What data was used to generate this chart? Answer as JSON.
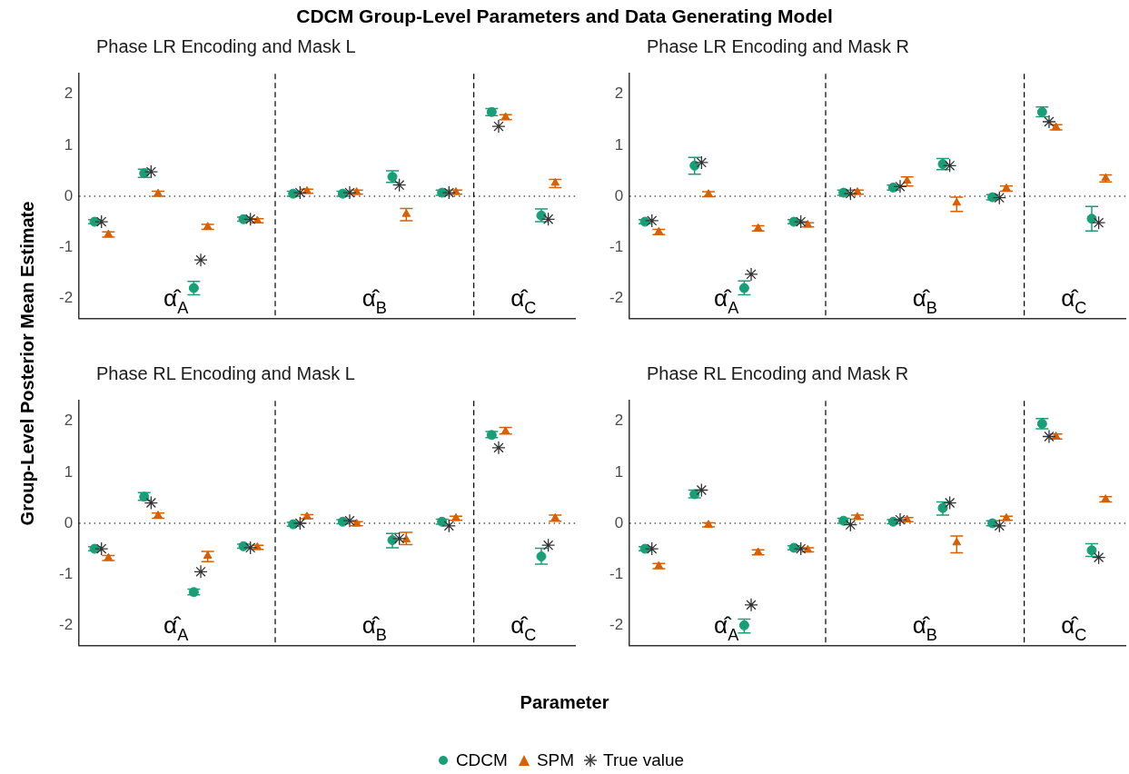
{
  "chart_data": [
    {
      "type": "scatter",
      "title": "CDCM Group-Level Parameters and Data Generating Model",
      "subtitle": "Phase LR Encoding and Mask L",
      "xlabel": "Parameter",
      "ylabel": "Group-Level Posterior Mean Estimate",
      "legend": "bottom",
      "tick_labels": "y",
      "grid": false,
      "ylim": [
        -2.4,
        2.4
      ],
      "yticks": [
        -2,
        -1,
        0,
        1,
        2
      ],
      "categories": [
        null,
        null,
        null,
        null,
        null,
        null,
        null,
        null,
        null,
        null
      ],
      "annotations": [
        "α̂$_{A}$",
        "α̂$_{B}$",
        "α̂$_{C}$"
      ],
      "ref_lines": [
        {
          "axis": "y",
          "value": 0,
          "line_style": "dotted",
          "color": "#000000"
        }
      ],
      "series": [
        {
          "name": "CDCM",
          "color": "#1b9e77",
          "marker": "circle",
          "values": [
            -0.5,
            0.45,
            -1.8,
            -0.45,
            0.05,
            0.05,
            0.38,
            0.07,
            1.65,
            -0.38
          ],
          "errors": [
            0.04,
            [
              0.37,
              0.53
            ],
            [
              -1.93,
              -1.67
            ],
            0.04,
            0.05,
            0.05,
            [
              0.27,
              0.5
            ],
            0.05,
            [
              1.58,
              1.72
            ],
            [
              -0.5,
              -0.25
            ]
          ]
        },
        {
          "name": "SPM",
          "color": "#d95f02",
          "marker": "triangle",
          "values": [
            -0.75,
            0.05,
            -0.6,
            -0.48,
            0.1,
            0.08,
            -0.35,
            0.08,
            1.55,
            0.26
          ],
          "errors": [
            0.05,
            0.05,
            0.05,
            0.04,
            0.04,
            0.04,
            [
              -0.48,
              -0.24
            ],
            0.04,
            0.05,
            [
              0.17,
              0.33
            ]
          ]
        },
        {
          "name": "True value",
          "color": "#333333",
          "marker": "cross",
          "values": [
            -0.5,
            0.48,
            -1.25,
            -0.45,
            0.07,
            0.07,
            0.22,
            0.07,
            1.37,
            -0.45
          ]
        }
      ]
    },
    {
      "type": "scatter",
      "subtitle": "Phase LR Encoding and Mask R",
      "tick_labels": "y",
      "grid": false,
      "ylim": [
        -2.4,
        2.4
      ],
      "yticks": [
        -2,
        -1,
        0,
        1,
        2
      ],
      "categories": [
        null,
        null,
        null,
        null,
        null,
        null,
        null,
        null,
        null,
        null
      ],
      "annotations": [
        "α̂$_{A}$",
        "α̂$_{B}$",
        "α̂$_{C}$"
      ],
      "ref_lines": [
        {
          "axis": "y",
          "value": 0,
          "line_style": "dotted",
          "color": "#000000"
        }
      ],
      "series": [
        {
          "color": "#1b9e77",
          "marker": "circle",
          "values": [
            -0.5,
            0.6,
            -1.8,
            -0.5,
            0.07,
            0.17,
            0.63,
            -0.02,
            1.65,
            -0.44
          ],
          "errors": [
            0.04,
            [
              0.43,
              0.76
            ],
            [
              -1.93,
              -1.66
            ],
            0.04,
            0.05,
            0.05,
            [
              0.52,
              0.74
            ],
            0.05,
            [
              1.56,
              1.75
            ],
            [
              -0.68,
              -0.2
            ]
          ]
        },
        {
          "color": "#d95f02",
          "marker": "triangle",
          "values": [
            -0.7,
            0.04,
            -0.63,
            -0.56,
            0.08,
            0.3,
            -0.13,
            0.15,
            1.35,
            0.35
          ],
          "errors": [
            0.05,
            0.05,
            0.05,
            0.04,
            0.04,
            [
              0.2,
              0.38
            ],
            [
              -0.3,
              -0.02
            ],
            0.05,
            0.05,
            [
              0.28,
              0.42
            ]
          ]
        },
        {
          "color": "#333333",
          "marker": "cross",
          "values": [
            -0.48,
            0.66,
            -1.53,
            -0.5,
            0.05,
            0.19,
            0.6,
            -0.03,
            1.46,
            -0.52
          ]
        }
      ]
    },
    {
      "type": "scatter",
      "subtitle": "Phase RL Encoding and Mask L",
      "tick_labels": "y",
      "grid": false,
      "ylim": [
        -2.4,
        2.4
      ],
      "yticks": [
        -2,
        -1,
        0,
        1,
        2
      ],
      "categories": [
        null,
        null,
        null,
        null,
        null,
        null,
        null,
        null,
        null,
        null
      ],
      "annotations": [
        "α̂$_{A}$",
        "α̂$_{B}$",
        "α̂$_{C}$"
      ],
      "ref_lines": [
        {
          "axis": "y",
          "value": 0,
          "line_style": "dotted",
          "color": "#000000"
        }
      ],
      "series": [
        {
          "color": "#1b9e77",
          "marker": "circle",
          "values": [
            -0.5,
            0.52,
            -1.35,
            -0.45,
            -0.02,
            0.03,
            -0.33,
            0.03,
            1.73,
            -0.65
          ],
          "errors": [
            0.04,
            [
              0.45,
              0.6
            ],
            [
              -1.4,
              -1.29
            ],
            0.04,
            0.04,
            0.04,
            [
              -0.48,
              -0.2
            ],
            0.05,
            [
              1.68,
              1.8
            ],
            [
              -0.8,
              -0.49
            ]
          ]
        },
        {
          "color": "#d95f02",
          "marker": "triangle",
          "values": [
            -0.68,
            0.15,
            -0.64,
            -0.47,
            0.13,
            -0.01,
            -0.32,
            0.1,
            1.8,
            0.1
          ],
          "errors": [
            0.05,
            0.05,
            [
              -0.75,
              -0.55
            ],
            0.04,
            0.04,
            0.04,
            [
              -0.42,
              -0.18
            ],
            0.04,
            [
              1.75,
              1.88
            ],
            [
              0.04,
              0.16
            ]
          ]
        },
        {
          "color": "#333333",
          "marker": "cross",
          "values": [
            -0.5,
            0.4,
            -0.95,
            -0.48,
            0,
            0.05,
            -0.3,
            -0.05,
            1.48,
            -0.43
          ]
        }
      ]
    },
    {
      "type": "scatter",
      "subtitle": "Phase RL Encoding and Mask R",
      "tick_labels": "y",
      "grid": false,
      "ylim": [
        -2.4,
        2.4
      ],
      "yticks": [
        -2,
        -1,
        0,
        1,
        2
      ],
      "categories": [
        null,
        null,
        null,
        null,
        null,
        null,
        null,
        null,
        null,
        null
      ],
      "annotations": [
        "α̂$_{A}$",
        "α̂$_{B}$",
        "α̂$_{C}$"
      ],
      "ref_lines": [
        {
          "axis": "y",
          "value": 0,
          "line_style": "dotted",
          "color": "#000000"
        }
      ],
      "series": [
        {
          "color": "#1b9e77",
          "marker": "circle",
          "values": [
            -0.5,
            0.57,
            -2.0,
            -0.48,
            0.05,
            0.03,
            0.3,
            0,
            1.95,
            -0.53
          ],
          "errors": [
            0.04,
            [
              0.5,
              0.65
            ],
            [
              -2.15,
              -1.88
            ],
            0.04,
            0.05,
            0.04,
            [
              0.16,
              0.42
            ],
            0.05,
            [
              1.85,
              2.05
            ],
            [
              -0.65,
              -0.4
            ]
          ]
        },
        {
          "color": "#d95f02",
          "marker": "triangle",
          "values": [
            -0.84,
            -0.03,
            -0.57,
            -0.52,
            0.12,
            0.07,
            -0.38,
            0.1,
            1.7,
            0.47
          ],
          "errors": [
            0.05,
            0.04,
            0.05,
            0.04,
            0.04,
            0.04,
            [
              -0.58,
              -0.25
            ],
            0.04,
            0.05,
            0.05
          ]
        },
        {
          "color": "#333333",
          "marker": "cross",
          "values": [
            -0.5,
            0.65,
            -1.6,
            -0.5,
            -0.03,
            0.07,
            0.4,
            -0.05,
            1.7,
            -0.67
          ]
        }
      ]
    }
  ]
}
